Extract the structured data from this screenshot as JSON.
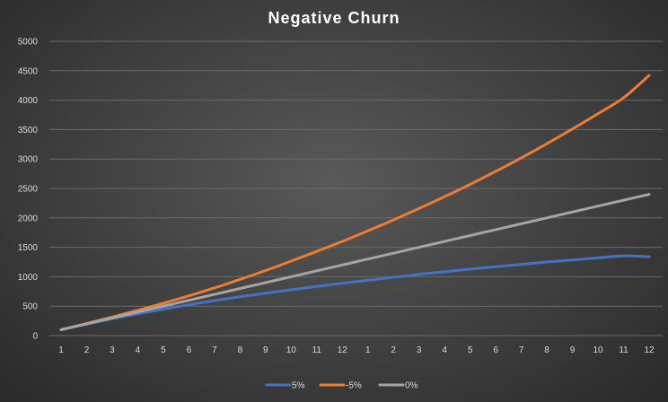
{
  "chart_data": {
    "type": "line",
    "title": "Negative Churn",
    "xlabel": "",
    "ylabel": "",
    "categories": [
      "1",
      "2",
      "3",
      "4",
      "5",
      "6",
      "7",
      "8",
      "9",
      "10",
      "11",
      "12",
      "1",
      "2",
      "3",
      "4",
      "5",
      "6",
      "7",
      "8",
      "9",
      "10",
      "11",
      "12"
    ],
    "ylim": [
      0,
      5000
    ],
    "yticks": [
      0,
      500,
      1000,
      1500,
      2000,
      2500,
      3000,
      3500,
      4000,
      4500,
      5000
    ],
    "grid": true,
    "legend_position": "bottom",
    "series": [
      {
        "name": "5%",
        "color": "#4472C4",
        "values": [
          100,
          195,
          285,
          370,
          450,
          525,
          595,
          660,
          720,
          780,
          835,
          890,
          940,
          990,
          1040,
          1085,
          1130,
          1170,
          1210,
          1250,
          1285,
          1320,
          1355,
          1340
        ]
      },
      {
        "name": "-5%",
        "color": "#ED7D31",
        "values": [
          100,
          205,
          315,
          430,
          550,
          675,
          810,
          955,
          1105,
          1265,
          1430,
          1600,
          1780,
          1965,
          2160,
          2360,
          2570,
          2790,
          3020,
          3260,
          3510,
          3770,
          4040,
          4420
        ]
      },
      {
        "name": "0%",
        "color": "#A5A5A5",
        "values": [
          100,
          200,
          300,
          400,
          500,
          600,
          700,
          800,
          900,
          1000,
          1100,
          1200,
          1300,
          1400,
          1500,
          1600,
          1700,
          1800,
          1900,
          2000,
          2100,
          2200,
          2300,
          2400
        ]
      }
    ]
  }
}
